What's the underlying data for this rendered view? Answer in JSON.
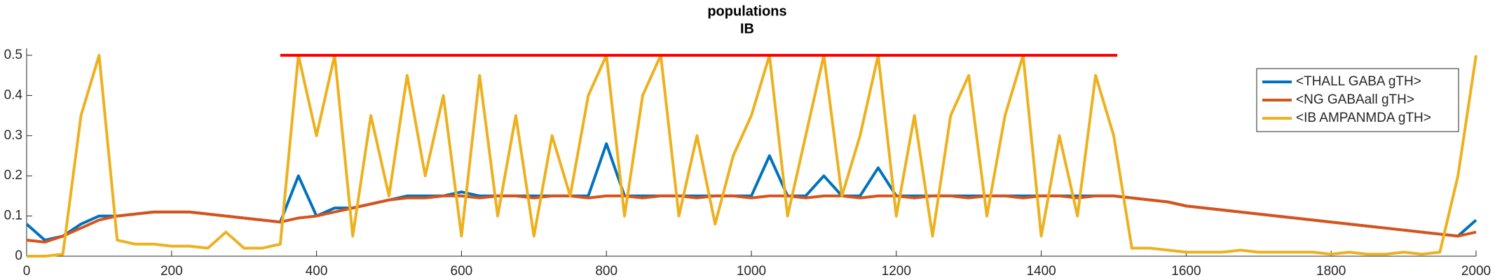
{
  "chart_data": {
    "type": "line",
    "title": "populations",
    "subtitle": "IB",
    "x": [
      0,
      25,
      50,
      75,
      100,
      125,
      150,
      175,
      200,
      225,
      250,
      275,
      300,
      325,
      350,
      375,
      400,
      425,
      450,
      475,
      500,
      525,
      550,
      575,
      600,
      625,
      650,
      675,
      700,
      725,
      750,
      775,
      800,
      825,
      850,
      875,
      900,
      925,
      950,
      975,
      1000,
      1025,
      1050,
      1075,
      1100,
      1125,
      1150,
      1175,
      1200,
      1225,
      1250,
      1275,
      1300,
      1325,
      1350,
      1375,
      1400,
      1425,
      1450,
      1475,
      1500,
      1525,
      1550,
      1575,
      1600,
      1625,
      1650,
      1675,
      1700,
      1725,
      1750,
      1775,
      1800,
      1825,
      1850,
      1875,
      1900,
      1925,
      1950,
      1975,
      2000
    ],
    "series": [
      {
        "name": "<THALL GABA gTH>",
        "color": "#0072bd",
        "values": [
          0.08,
          0.04,
          0.05,
          0.08,
          0.1,
          0.1,
          0.105,
          0.11,
          0.11,
          0.11,
          0.105,
          0.1,
          0.095,
          0.09,
          0.085,
          0.2,
          0.1,
          0.12,
          0.12,
          0.13,
          0.14,
          0.15,
          0.15,
          0.15,
          0.16,
          0.15,
          0.15,
          0.15,
          0.15,
          0.15,
          0.15,
          0.15,
          0.28,
          0.15,
          0.15,
          0.15,
          0.15,
          0.15,
          0.15,
          0.15,
          0.15,
          0.25,
          0.15,
          0.15,
          0.2,
          0.15,
          0.15,
          0.22,
          0.15,
          0.15,
          0.15,
          0.15,
          0.15,
          0.15,
          0.15,
          0.15,
          0.15,
          0.15,
          0.15,
          0.15,
          0.15,
          0.145,
          0.14,
          0.135,
          0.125,
          0.12,
          0.115,
          0.11,
          0.105,
          0.1,
          0.095,
          0.09,
          0.085,
          0.08,
          0.075,
          0.07,
          0.065,
          0.06,
          0.055,
          0.05,
          0.09
        ]
      },
      {
        "name": "<NG GABAall gTH>",
        "color": "#d95319",
        "values": [
          0.04,
          0.035,
          0.05,
          0.07,
          0.09,
          0.1,
          0.105,
          0.11,
          0.11,
          0.11,
          0.105,
          0.1,
          0.095,
          0.09,
          0.085,
          0.095,
          0.1,
          0.11,
          0.12,
          0.13,
          0.14,
          0.145,
          0.145,
          0.15,
          0.15,
          0.145,
          0.15,
          0.15,
          0.145,
          0.15,
          0.15,
          0.145,
          0.15,
          0.15,
          0.145,
          0.15,
          0.15,
          0.145,
          0.15,
          0.15,
          0.145,
          0.15,
          0.15,
          0.145,
          0.15,
          0.15,
          0.145,
          0.15,
          0.15,
          0.145,
          0.15,
          0.15,
          0.145,
          0.15,
          0.15,
          0.145,
          0.15,
          0.15,
          0.145,
          0.15,
          0.15,
          0.145,
          0.14,
          0.135,
          0.125,
          0.12,
          0.115,
          0.11,
          0.105,
          0.1,
          0.095,
          0.09,
          0.085,
          0.08,
          0.075,
          0.07,
          0.065,
          0.06,
          0.055,
          0.05,
          0.06
        ]
      },
      {
        "name": "<IB AMPANMDA gTH>",
        "color": "#edb120",
        "values": [
          0,
          0,
          0.005,
          0.35,
          0.5,
          0.04,
          0.03,
          0.03,
          0.025,
          0.025,
          0.02,
          0.06,
          0.02,
          0.02,
          0.03,
          0.5,
          0.3,
          0.5,
          0.05,
          0.35,
          0.15,
          0.45,
          0.2,
          0.4,
          0.05,
          0.45,
          0.1,
          0.35,
          0.05,
          0.3,
          0.15,
          0.4,
          0.5,
          0.1,
          0.4,
          0.5,
          0.1,
          0.3,
          0.08,
          0.25,
          0.35,
          0.5,
          0.1,
          0.3,
          0.5,
          0.15,
          0.3,
          0.5,
          0.1,
          0.35,
          0.05,
          0.35,
          0.45,
          0.1,
          0.35,
          0.5,
          0.05,
          0.3,
          0.1,
          0.45,
          0.3,
          0.02,
          0.02,
          0.015,
          0.01,
          0.01,
          0.01,
          0.015,
          0.01,
          0.01,
          0.01,
          0.01,
          0.005,
          0.01,
          0.005,
          0.005,
          0.01,
          0.005,
          0.01,
          0.2,
          0.5
        ]
      },
      {
        "color": "#ff0000",
        "x": [
          350,
          1505
        ],
        "values": [
          0.5,
          0.5
        ]
      }
    ],
    "xlim": [
      0,
      2000
    ],
    "xticks": [
      0,
      200,
      400,
      600,
      800,
      1000,
      1200,
      1400,
      1600,
      1800,
      2000
    ],
    "ylim": [
      0,
      0.5
    ],
    "yticks": [
      0,
      0.1,
      0.2,
      0.3,
      0.4,
      0.5
    ],
    "legend": "upper right"
  }
}
